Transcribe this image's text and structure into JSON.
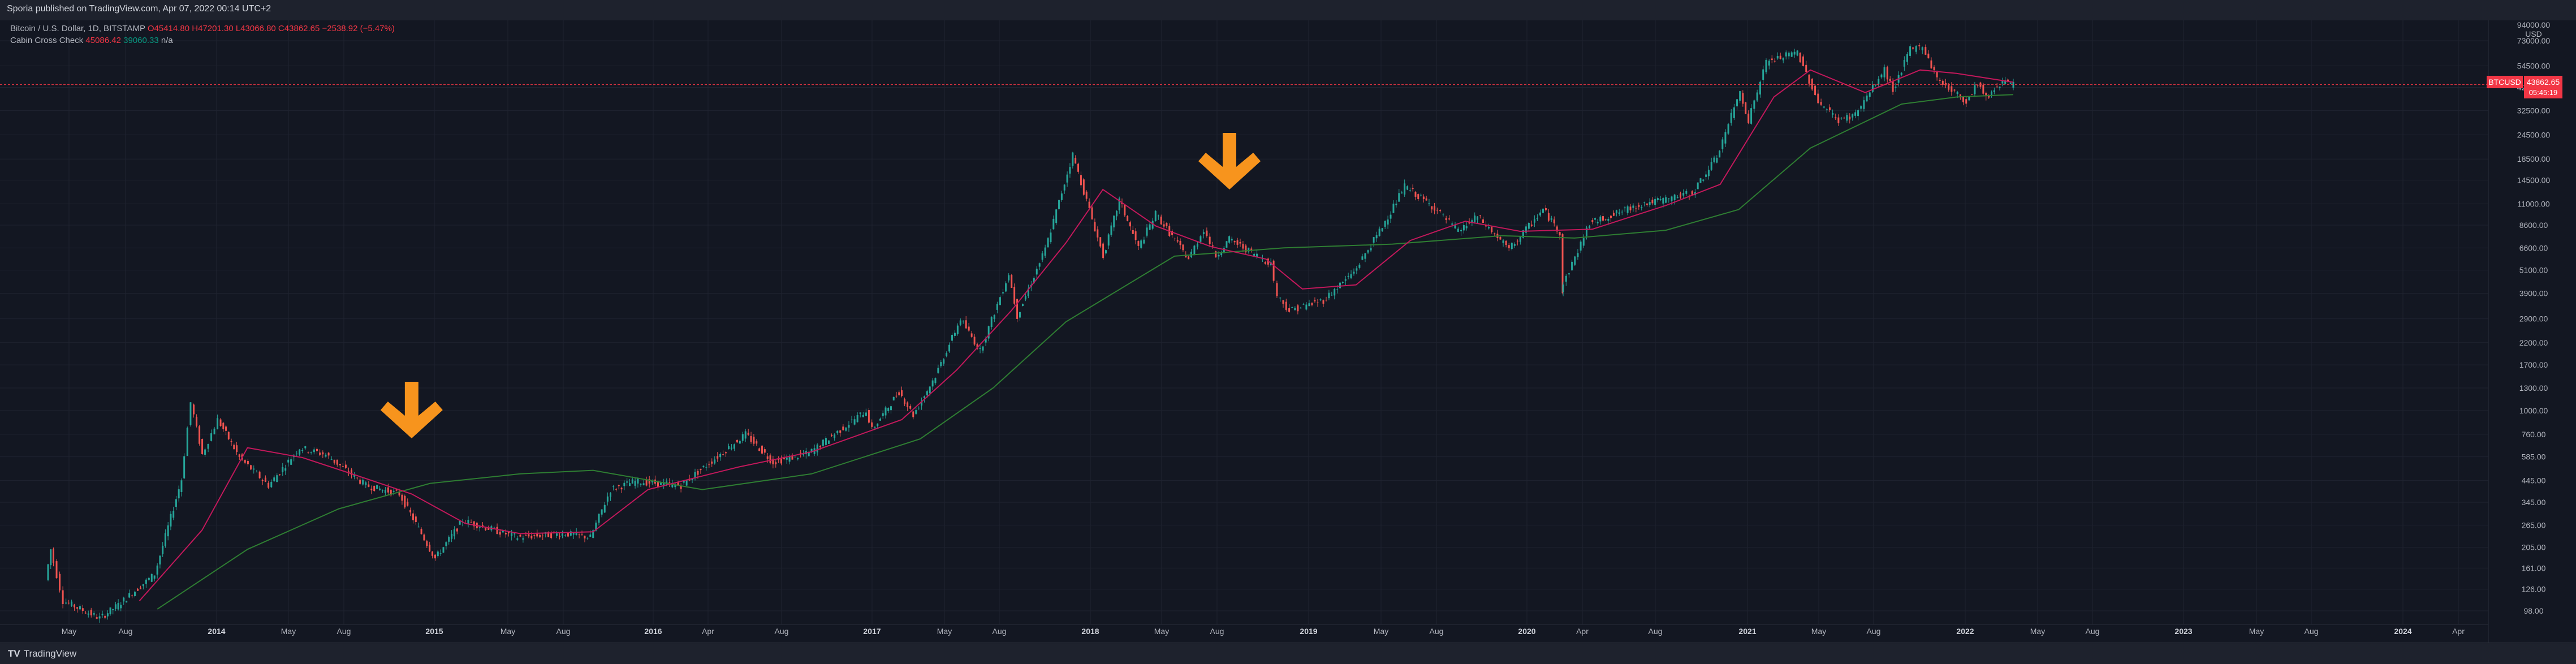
{
  "header": {
    "published": "Sporia published on TradingView.com, Apr 07, 2022 00:14 UTC+2"
  },
  "legend": {
    "symbol": "Bitcoin / U.S. Dollar, 1D, BITSTAMP",
    "open": "O45414.80",
    "high": "H47201.30",
    "low": "L43066.80",
    "close": "C43862.65",
    "change": "−2538.92 (−5.47%)",
    "indicator": "Cabin Cross Check",
    "ind_v1": "45086.42",
    "ind_v2": "39060.33",
    "ind_v3": "n/a"
  },
  "price_tag": {
    "symbol": "BTCUSD",
    "price": "43862.65",
    "countdown": "05:45:19"
  },
  "footer": {
    "brand": "TradingView"
  },
  "colors": {
    "bg": "#131722",
    "up": "#26a69a",
    "down": "#ef5350",
    "fast_ma": "#c2185b",
    "slow_ma": "#2e7d32",
    "arrow": "#f7941d"
  },
  "chart_data": {
    "type": "line",
    "scale": "log",
    "title": "Bitcoin / U.S. Dollar, 1D, BITSTAMP",
    "ylabel": "USD",
    "ylim": [
      80,
      105000
    ],
    "grid": true,
    "x_tick_labels": [
      "May",
      "Aug",
      "2014",
      "May",
      "Aug",
      "2015",
      "May",
      "Aug",
      "2016",
      "Apr",
      "Aug",
      "2017",
      "May",
      "Aug",
      "2018",
      "May",
      "Aug",
      "2019",
      "May",
      "Aug",
      "2020",
      "Apr",
      "Aug",
      "2021",
      "May",
      "Aug",
      "2022",
      "May",
      "Aug",
      "2023",
      "May",
      "Aug",
      "2024",
      "Apr"
    ],
    "y_tick_labels": [
      "94000.00",
      "USD",
      "73000.00",
      "54500.00",
      "42500.00",
      "32500.00",
      "24500.00",
      "18500.00",
      "14500.00",
      "11000.00",
      "8600.00",
      "6600.00",
      "5100.00",
      "3900.00",
      "2900.00",
      "2200.00",
      "1700.00",
      "1300.00",
      "1000.00",
      "760.00",
      "585.00",
      "445.00",
      "345.00",
      "265.00",
      "205.00",
      "161.00",
      "126.00",
      "98.00"
    ],
    "series": [
      {
        "name": "BTCUSD",
        "x": [
          "2013-04-01",
          "2013-04-10",
          "2013-05-01",
          "2013-07-01",
          "2013-08-01",
          "2013-10-01",
          "2013-11-15",
          "2013-12-01",
          "2013-12-20",
          "2014-01-15",
          "2014-02-20",
          "2014-04-10",
          "2014-06-01",
          "2014-07-15",
          "2014-09-20",
          "2014-11-15",
          "2015-01-14",
          "2015-03-01",
          "2015-06-01",
          "2015-08-20",
          "2015-10-01",
          "2015-11-04",
          "2015-12-15",
          "2016-03-01",
          "2016-06-17",
          "2016-08-02",
          "2016-10-01",
          "2017-01-05",
          "2017-01-15",
          "2017-03-01",
          "2017-03-25",
          "2017-05-01",
          "2017-06-12",
          "2017-07-15",
          "2017-09-01",
          "2017-09-15",
          "2017-11-01",
          "2017-12-17",
          "2018-02-06",
          "2018-03-05",
          "2018-04-06",
          "2018-05-05",
          "2018-06-29",
          "2018-07-25",
          "2018-08-14",
          "2018-09-05",
          "2018-11-14",
          "2018-11-25",
          "2018-12-15",
          "2019-02-10",
          "2019-04-02",
          "2019-05-15",
          "2019-06-26",
          "2019-08-15",
          "2019-09-24",
          "2019-10-26",
          "2019-12-18",
          "2020-02-13",
          "2020-03-12",
          "2020-03-13",
          "2020-05-01",
          "2020-06-01",
          "2020-07-27",
          "2020-09-01",
          "2020-10-20",
          "2020-11-30",
          "2021-01-08",
          "2021-01-22",
          "2021-02-21",
          "2021-04-14",
          "2021-05-19",
          "2021-06-22",
          "2021-07-20",
          "2021-09-07",
          "2021-09-21",
          "2021-10-20",
          "2021-11-10",
          "2021-12-04",
          "2022-01-22",
          "2022-02-10",
          "2022-02-24",
          "2022-03-28",
          "2022-04-06"
        ],
        "y": [
          140,
          200,
          110,
          90,
          105,
          150,
          450,
          1100,
          600,
          900,
          580,
          420,
          650,
          600,
          420,
          380,
          180,
          280,
          230,
          240,
          230,
          400,
          440,
          420,
          760,
          550,
          610,
          1000,
          800,
          1250,
          950,
          1500,
          2900,
          2000,
          4900,
          3000,
          6500,
          19500,
          6000,
          11500,
          6600,
          9800,
          5800,
          8200,
          6000,
          7300,
          5500,
          3800,
          3200,
          3600,
          5000,
          8000,
          13500,
          10500,
          8000,
          9500,
          6500,
          10300,
          7900,
          4000,
          8800,
          9500,
          11000,
          11500,
          12500,
          19000,
          40500,
          29000,
          57000,
          64000,
          36000,
          29000,
          31000,
          52000,
          41000,
          66000,
          68700,
          47000,
          36000,
          45000,
          37500,
          47500,
          43862.65
        ]
      },
      {
        "name": "Cabin Cross Check fast MA",
        "x": [
          "2013-09-01",
          "2013-12-15",
          "2014-03-01",
          "2014-06-01",
          "2014-09-01",
          "2014-12-01",
          "2015-03-01",
          "2015-06-01",
          "2015-10-01",
          "2016-01-01",
          "2016-06-01",
          "2016-10-01",
          "2017-03-01",
          "2017-06-01",
          "2017-09-01",
          "2017-12-01",
          "2018-02-01",
          "2018-05-01",
          "2018-08-01",
          "2018-11-01",
          "2019-01-01",
          "2019-04-01",
          "2019-07-01",
          "2019-10-01",
          "2020-01-01",
          "2020-05-01",
          "2020-09-01",
          "2020-12-01",
          "2021-03-01",
          "2021-05-01",
          "2021-08-01",
          "2021-11-01",
          "2022-01-01",
          "2022-04-06"
        ],
        "y": [
          110,
          250,
          650,
          580,
          470,
          380,
          270,
          240,
          245,
          400,
          520,
          620,
          900,
          1600,
          3200,
          7000,
          13000,
          8500,
          6700,
          5800,
          4100,
          4300,
          7200,
          9000,
          8000,
          8200,
          10800,
          13800,
          38000,
          52000,
          40000,
          52000,
          50000,
          45086.42
        ]
      },
      {
        "name": "Cabin Cross Check slow MA",
        "x": [
          "2013-10-01",
          "2014-03-01",
          "2014-08-01",
          "2015-01-01",
          "2015-06-01",
          "2015-10-01",
          "2016-04-01",
          "2016-10-01",
          "2017-04-01",
          "2017-08-01",
          "2017-12-01",
          "2018-06-01",
          "2018-12-01",
          "2019-06-01",
          "2019-12-01",
          "2020-04-01",
          "2020-09-01",
          "2021-01-01",
          "2021-05-01",
          "2021-10-01",
          "2022-01-01",
          "2022-04-06"
        ],
        "y": [
          100,
          200,
          320,
          430,
          480,
          500,
          400,
          480,
          720,
          1300,
          2800,
          6000,
          6600,
          6900,
          7600,
          7400,
          8100,
          10300,
          21000,
          35000,
          38000,
          39060.33
        ]
      }
    ],
    "annotations": [
      {
        "type": "arrow-down",
        "x": "2014-12-01"
      },
      {
        "type": "arrow-down",
        "x": "2018-09-01"
      }
    ]
  }
}
